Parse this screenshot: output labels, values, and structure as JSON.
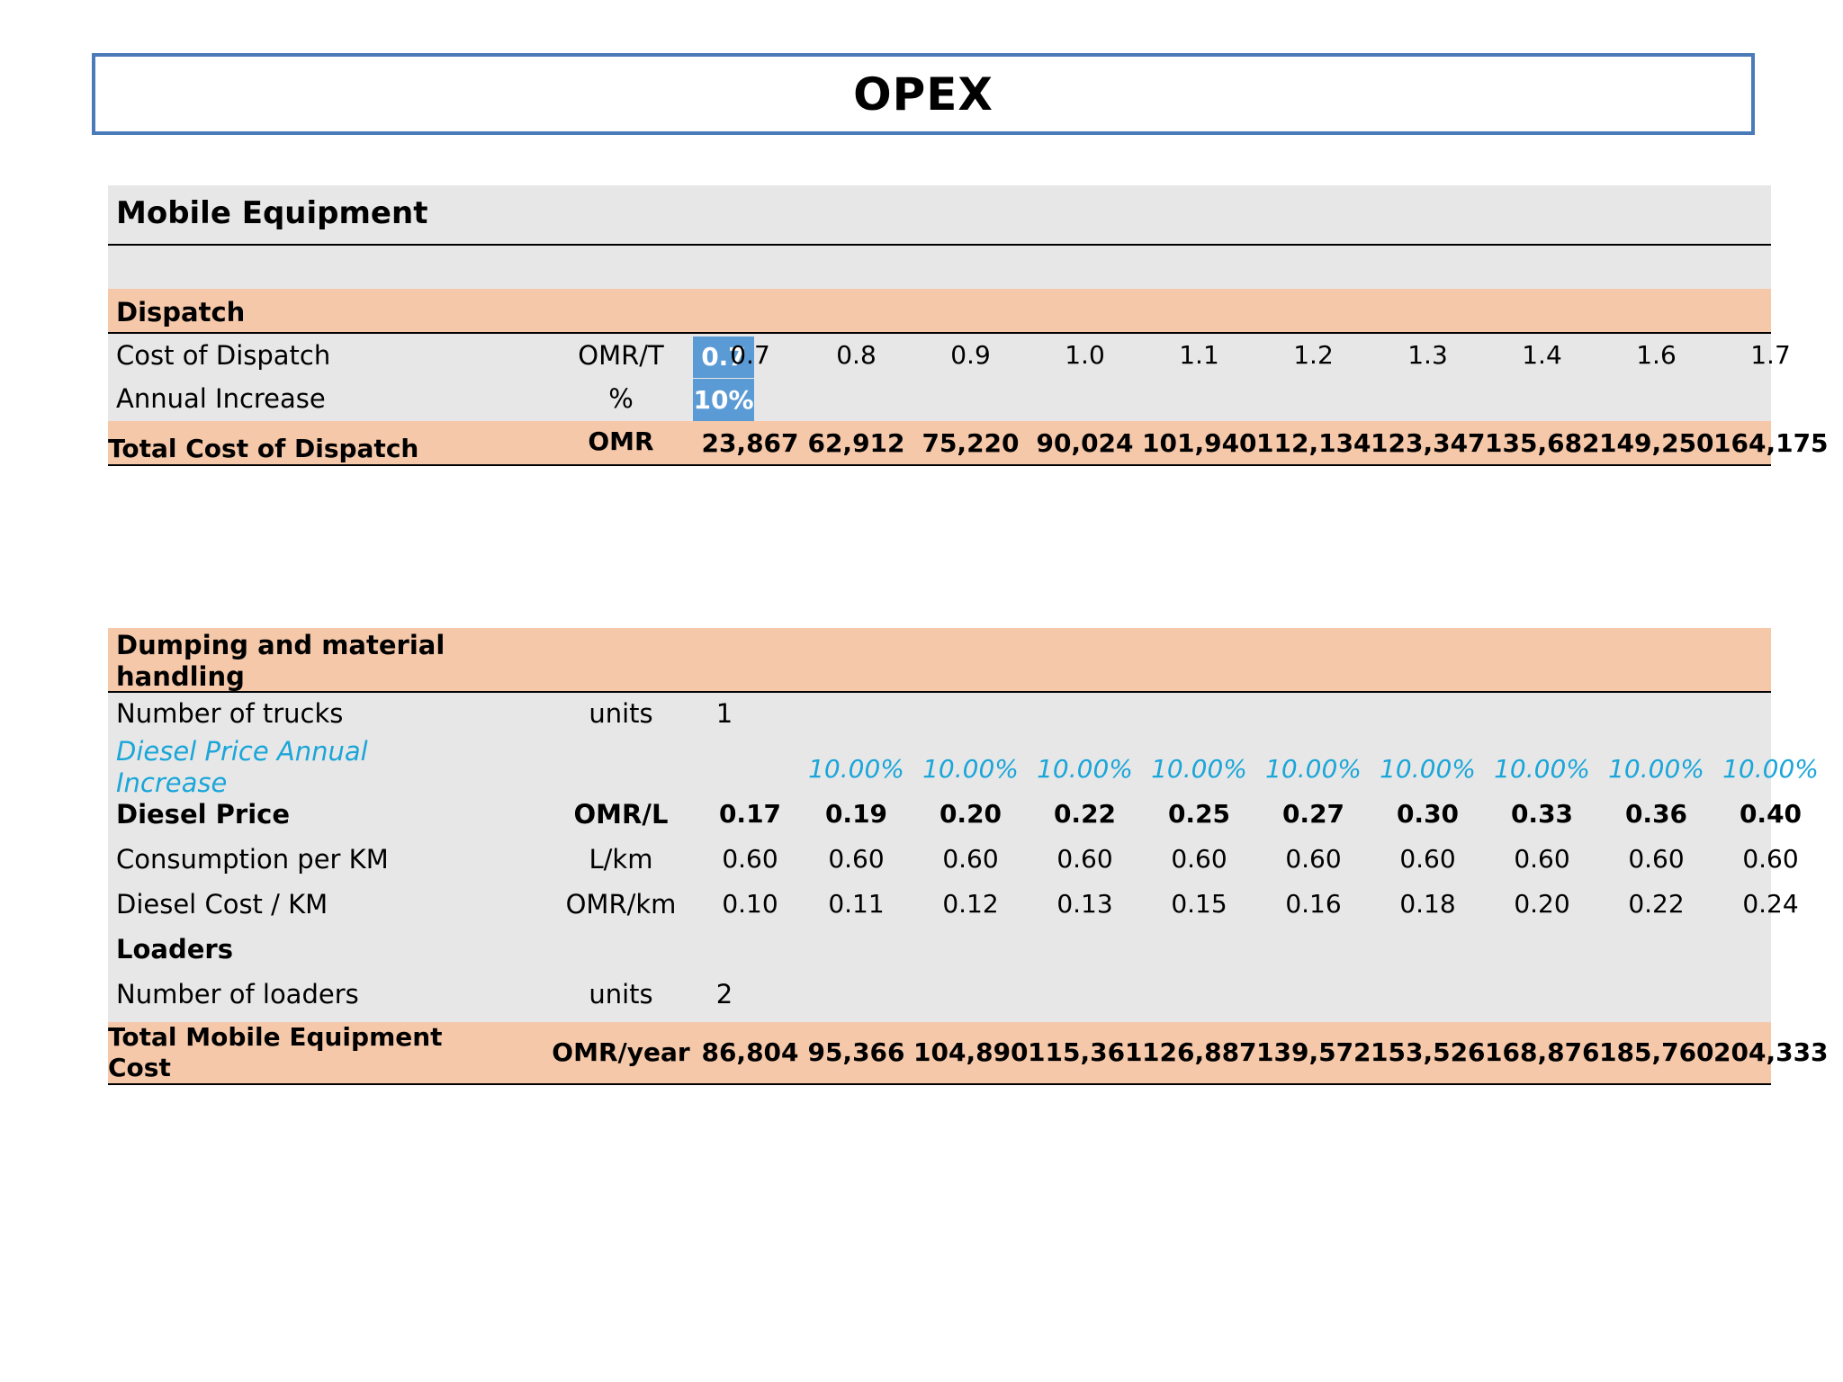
{
  "page_title": "OPEX",
  "section_title": "Mobile Equipment",
  "dispatch": {
    "header": "Dispatch",
    "cost": {
      "label": "Cost of Dispatch",
      "unit": "OMR/T",
      "input": "0.7",
      "values": [
        "0.7",
        "0.8",
        "0.9",
        "1.0",
        "1.1",
        "1.2",
        "1.3",
        "1.4",
        "1.6",
        "1.7"
      ]
    },
    "increase": {
      "label": "Annual Increase",
      "unit": "%",
      "input": "10%"
    },
    "total": {
      "label": "Total Cost of Dispatch",
      "unit": "OMR",
      "values": [
        "23,867",
        "62,912",
        "75,220",
        "90,024",
        "101,940",
        "112,134",
        "123,347",
        "135,682",
        "149,250",
        "164,175"
      ]
    }
  },
  "dumping": {
    "header_line1": "Dumping and material",
    "header_line2": "handling",
    "trucks": {
      "label": "Number of trucks",
      "unit": "units",
      "input": "1"
    },
    "diesel_increase": {
      "label_line1": "Diesel Price Annual",
      "label_line2": "Increase",
      "values": [
        "10.00%",
        "10.00%",
        "10.00%",
        "10.00%",
        "10.00%",
        "10.00%",
        "10.00%",
        "10.00%",
        "10.00%"
      ]
    },
    "diesel_price": {
      "label": "Diesel Price",
      "unit": "OMR/L",
      "values": [
        "0.17",
        "0.19",
        "0.20",
        "0.22",
        "0.25",
        "0.27",
        "0.30",
        "0.33",
        "0.36",
        "0.40"
      ]
    },
    "consumption": {
      "label": "Consumption per KM",
      "unit": "L/km",
      "values": [
        "0.60",
        "0.60",
        "0.60",
        "0.60",
        "0.60",
        "0.60",
        "0.60",
        "0.60",
        "0.60",
        "0.60"
      ]
    },
    "diesel_cost": {
      "label": "Diesel Cost / KM",
      "unit": "OMR/km",
      "values": [
        "0.10",
        "0.11",
        "0.12",
        "0.13",
        "0.15",
        "0.16",
        "0.18",
        "0.20",
        "0.22",
        "0.24"
      ]
    },
    "loaders_header": "Loaders",
    "loaders": {
      "label": "Number of loaders",
      "unit": "units",
      "input": "2"
    },
    "total": {
      "label_line1": "Total Mobile Equipment",
      "label_line2": "Cost",
      "unit": "OMR/year",
      "values": [
        "86,804",
        "95,366",
        "104,890",
        "115,361",
        "126,887",
        "139,572",
        "153,526",
        "168,876",
        "185,760",
        "204,333"
      ]
    }
  }
}
